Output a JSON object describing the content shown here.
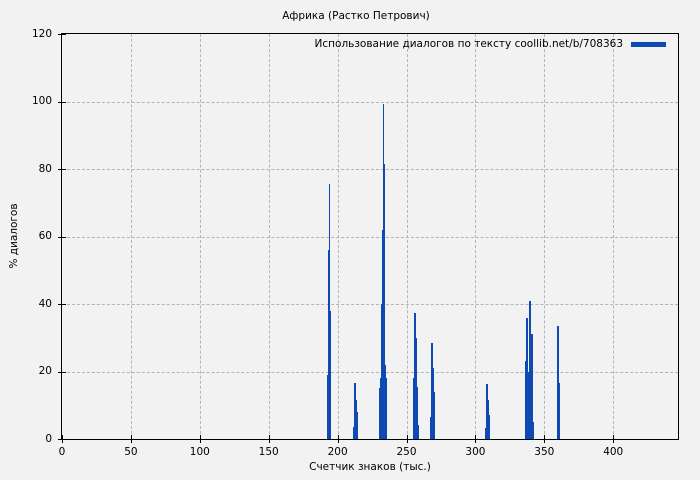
{
  "title": "Африка (Растко Петрович)",
  "legend": {
    "label": "Использование диалогов по тексту coollib.net/b/708363"
  },
  "colors": {
    "series_blue": "#0e49b4",
    "background": "#f2f2f2",
    "grid": "#b4b4b4",
    "frame": "#000000"
  },
  "chart_data": {
    "type": "bar",
    "subtype": "impulses",
    "title": "Африка (Растко Петрович)",
    "xlabel": "Счетчик знаков (тыс.)",
    "ylabel": "% диалогов",
    "xlim": [
      0,
      447
    ],
    "ylim": [
      0,
      120
    ],
    "x_ticks": [
      0,
      50,
      100,
      150,
      200,
      250,
      300,
      350,
      400
    ],
    "y_ticks": [
      0,
      20,
      40,
      60,
      80,
      100,
      120
    ],
    "grid": true,
    "legend_position": "top-right",
    "series": [
      {
        "name": "Использование диалогов по тексту coollib.net/b/708363",
        "points": [
          [
            192.8,
            19.0
          ],
          [
            193.5,
            56.0
          ],
          [
            194.2,
            75.5
          ],
          [
            194.9,
            38.0
          ],
          [
            211.6,
            3.5
          ],
          [
            212.7,
            16.5
          ],
          [
            213.4,
            11.5
          ],
          [
            214.1,
            8.0
          ],
          [
            230.8,
            15.0
          ],
          [
            231.5,
            18.0
          ],
          [
            232.2,
            40.0
          ],
          [
            232.6,
            52.0
          ],
          [
            233.0,
            62.0
          ],
          [
            233.4,
            99.4
          ],
          [
            233.8,
            81.6
          ],
          [
            234.4,
            22.0
          ],
          [
            235.1,
            18.0
          ],
          [
            255.4,
            18.0
          ],
          [
            256.2,
            37.3
          ],
          [
            256.9,
            29.8
          ],
          [
            257.6,
            15.4
          ],
          [
            258.3,
            4.2
          ],
          [
            267.8,
            6.5
          ],
          [
            268.5,
            28.5
          ],
          [
            269.2,
            21.0
          ],
          [
            270.0,
            14.0
          ],
          [
            307.6,
            3.3
          ],
          [
            308.3,
            16.2
          ],
          [
            309.1,
            11.5
          ],
          [
            309.8,
            7.0
          ],
          [
            336.6,
            23.0
          ],
          [
            337.3,
            36.0
          ],
          [
            338.0,
            20.0
          ],
          [
            338.8,
            4.0
          ],
          [
            339.5,
            41.0
          ],
          [
            340.2,
            16.5
          ],
          [
            341.2,
            31.0
          ],
          [
            341.9,
            5.0
          ],
          [
            359.8,
            33.4
          ],
          [
            360.5,
            16.5
          ]
        ]
      }
    ]
  }
}
